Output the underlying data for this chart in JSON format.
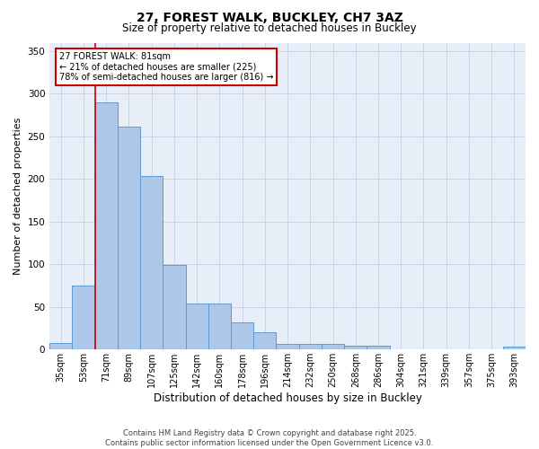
{
  "title": "27, FOREST WALK, BUCKLEY, CH7 3AZ",
  "subtitle": "Size of property relative to detached houses in Buckley",
  "xlabel": "Distribution of detached houses by size in Buckley",
  "ylabel": "Number of detached properties",
  "categories": [
    "35sqm",
    "53sqm",
    "71sqm",
    "89sqm",
    "107sqm",
    "125sqm",
    "142sqm",
    "160sqm",
    "178sqm",
    "196sqm",
    "214sqm",
    "232sqm",
    "250sqm",
    "268sqm",
    "286sqm",
    "304sqm",
    "321sqm",
    "339sqm",
    "357sqm",
    "375sqm",
    "393sqm"
  ],
  "values": [
    8,
    75,
    290,
    262,
    204,
    99,
    54,
    54,
    32,
    20,
    7,
    7,
    7,
    4,
    4,
    0,
    0,
    0,
    0,
    0,
    3
  ],
  "bar_color": "#aec6e8",
  "bar_edge_color": "#5b9bd5",
  "grid_color": "#c8d4e8",
  "bg_color": "#e8eef8",
  "vline_color": "#cc0000",
  "annotation_line1": "27 FOREST WALK: 81sqm",
  "annotation_line2": "← 21% of detached houses are smaller (225)",
  "annotation_line3": "78% of semi-detached houses are larger (816) →",
  "annotation_box_color": "#ffffff",
  "annotation_box_edge": "#cc0000",
  "footer": "Contains HM Land Registry data © Crown copyright and database right 2025.\nContains public sector information licensed under the Open Government Licence v3.0.",
  "ylim": [
    0,
    360
  ],
  "yticks": [
    0,
    50,
    100,
    150,
    200,
    250,
    300,
    350
  ],
  "title_fontsize": 10,
  "subtitle_fontsize": 8.5,
  "ylabel_fontsize": 8,
  "xlabel_fontsize": 8.5,
  "tick_fontsize": 7,
  "footer_fontsize": 6
}
